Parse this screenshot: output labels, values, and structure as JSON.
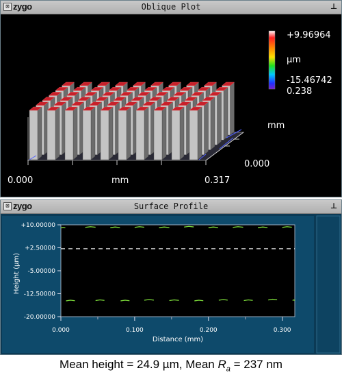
{
  "oblique_window": {
    "close_icon": "close-icon",
    "logo": "zygo",
    "title": "Oblique Plot",
    "pin_icon": "pin-icon",
    "colorbar": {
      "max": "+9.96964",
      "unit": "µm",
      "min": "-15.46742",
      "colors": [
        "#ffffff",
        "#ff2020",
        "#ff8c00",
        "#ffe000",
        "#20e020",
        "#00c8ff",
        "#2030ff",
        "#7a20c8"
      ]
    },
    "x_start": "0.000",
    "x_unit": "mm",
    "x_end": "0.317",
    "y_end": "0.238",
    "y_unit": "mm",
    "y_start": "0.000"
  },
  "profile_window": {
    "close_icon": "close-icon",
    "logo": "zygo",
    "title": "Surface Profile",
    "pin_icon": "pin-icon"
  },
  "caption": {
    "prefix": "Mean height = 24.9 µm, Mean ",
    "r_letter": "R",
    "r_sub": "a",
    "suffix": " = 237 nm"
  },
  "chart_data": {
    "type": "line",
    "title": "Surface Profile",
    "xlabel": "Distance (mm)",
    "ylabel": "Height (µm)",
    "xlim": [
      0,
      0.317
    ],
    "ylim": [
      -20,
      10
    ],
    "xticks": [
      "0.000",
      "0.100",
      "0.200",
      "0.300"
    ],
    "xtick_values": [
      0,
      0.1,
      0.2,
      0.3
    ],
    "xticks_minor_values": [
      0.05,
      0.15,
      0.25
    ],
    "yticks": [
      "+10.00000",
      "+2.50000",
      "-5.00000",
      "-12.50000",
      "-20.00000"
    ],
    "ytick_values": [
      10,
      2.5,
      -5,
      -12.5,
      -20
    ],
    "grid": false,
    "mean_line": 2.2,
    "series": [
      {
        "color": "#7ddc3a",
        "top_segments": [
          [
            0.0,
            0.006,
            9.1
          ],
          [
            0.033,
            0.047,
            9.3
          ],
          [
            0.067,
            0.08,
            9.2
          ],
          [
            0.1,
            0.113,
            9.3
          ],
          [
            0.133,
            0.147,
            9.2
          ],
          [
            0.167,
            0.18,
            9.4
          ],
          [
            0.2,
            0.213,
            9.2
          ],
          [
            0.233,
            0.247,
            9.3
          ],
          [
            0.267,
            0.28,
            9.2
          ],
          [
            0.3,
            0.313,
            9.3
          ]
        ],
        "bottom_segments": [
          [
            0.007,
            0.019,
            -14.7
          ],
          [
            0.047,
            0.059,
            -14.6
          ],
          [
            0.081,
            0.093,
            -14.7
          ],
          [
            0.113,
            0.126,
            -14.5
          ],
          [
            0.147,
            0.16,
            -14.6
          ],
          [
            0.181,
            0.193,
            -14.7
          ],
          [
            0.214,
            0.226,
            -14.5
          ],
          [
            0.248,
            0.26,
            -14.6
          ],
          [
            0.281,
            0.293,
            -14.4
          ],
          [
            0.314,
            0.317,
            -14.6
          ]
        ]
      }
    ]
  }
}
